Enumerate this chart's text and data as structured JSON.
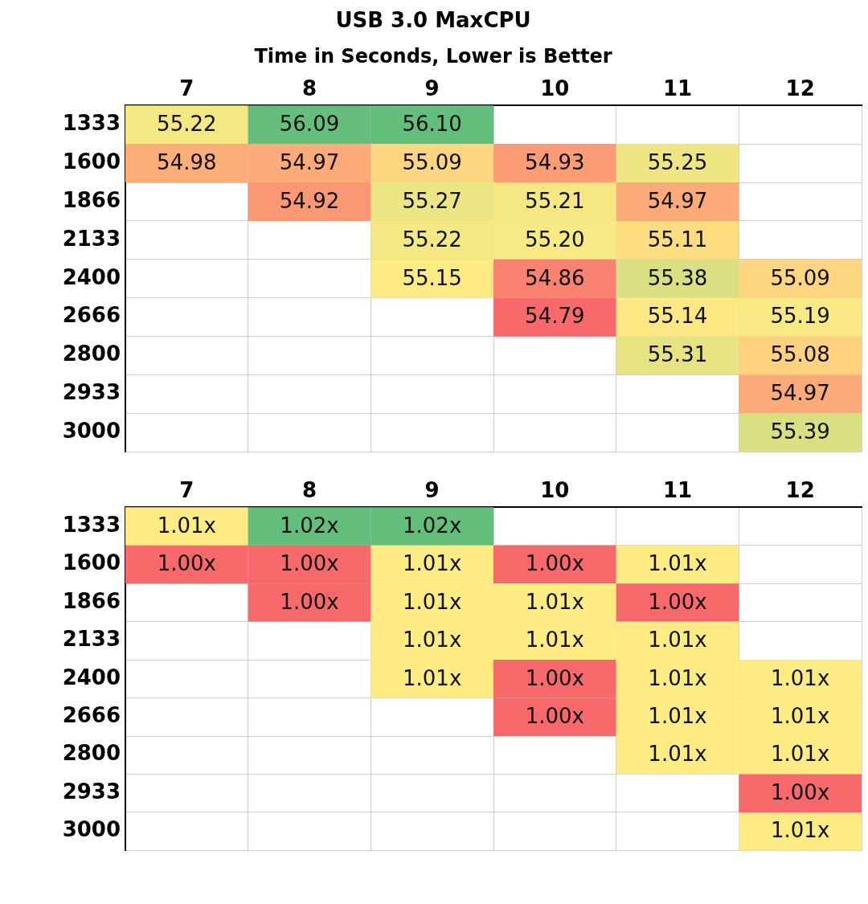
{
  "chart_data": [
    {
      "type": "heatmap",
      "title": "USB 3.0 MaxCPU",
      "subtitle": "Time in Seconds, Lower is Better",
      "categories": [
        "7",
        "8",
        "9",
        "10",
        "11",
        "12"
      ],
      "y_categories": [
        "1333",
        "1600",
        "1866",
        "2133",
        "2400",
        "2666",
        "2800",
        "2933",
        "3000"
      ],
      "cells": [
        [
          55.22,
          56.09,
          56.1,
          null,
          null,
          null
        ],
        [
          54.98,
          54.97,
          55.09,
          54.93,
          55.25,
          null
        ],
        [
          null,
          54.92,
          55.27,
          55.21,
          54.97,
          null
        ],
        [
          null,
          null,
          55.22,
          55.2,
          55.11,
          null
        ],
        [
          null,
          null,
          55.15,
          54.86,
          55.38,
          55.09
        ],
        [
          null,
          null,
          null,
          54.79,
          55.14,
          55.19
        ],
        [
          null,
          null,
          null,
          null,
          55.31,
          55.08
        ],
        [
          null,
          null,
          null,
          null,
          null,
          54.97
        ],
        [
          null,
          null,
          null,
          null,
          null,
          55.39
        ]
      ],
      "cell_labels": [
        [
          "55.22",
          "56.09",
          "56.10",
          null,
          null,
          null
        ],
        [
          "54.98",
          "54.97",
          "55.09",
          "54.93",
          "55.25",
          null
        ],
        [
          null,
          "54.92",
          "55.27",
          "55.21",
          "54.97",
          null
        ],
        [
          null,
          null,
          "55.22",
          "55.20",
          "55.11",
          null
        ],
        [
          null,
          null,
          "55.15",
          "54.86",
          "55.38",
          "55.09"
        ],
        [
          null,
          null,
          null,
          "54.79",
          "55.14",
          "55.19"
        ],
        [
          null,
          null,
          null,
          null,
          "55.31",
          "55.08"
        ],
        [
          null,
          null,
          null,
          null,
          null,
          "54.97"
        ],
        [
          null,
          null,
          null,
          null,
          null,
          "55.39"
        ]
      ]
    },
    {
      "type": "heatmap",
      "categories": [
        "7",
        "8",
        "9",
        "10",
        "11",
        "12"
      ],
      "y_categories": [
        "1333",
        "1600",
        "1866",
        "2133",
        "2400",
        "2666",
        "2800",
        "2933",
        "3000"
      ],
      "cells": [
        [
          1.01,
          1.02,
          1.02,
          null,
          null,
          null
        ],
        [
          1.0,
          1.0,
          1.01,
          1.0,
          1.01,
          null
        ],
        [
          null,
          1.0,
          1.01,
          1.01,
          1.0,
          null
        ],
        [
          null,
          null,
          1.01,
          1.01,
          1.01,
          null
        ],
        [
          null,
          null,
          1.01,
          1.0,
          1.01,
          1.01
        ],
        [
          null,
          null,
          null,
          1.0,
          1.01,
          1.01
        ],
        [
          null,
          null,
          null,
          null,
          1.01,
          1.01
        ],
        [
          null,
          null,
          null,
          null,
          null,
          1.0
        ],
        [
          null,
          null,
          null,
          null,
          null,
          1.01
        ]
      ],
      "cell_labels": [
        [
          "1.01x",
          "1.02x",
          "1.02x",
          null,
          null,
          null
        ],
        [
          "1.00x",
          "1.00x",
          "1.01x",
          "1.00x",
          "1.01x",
          null
        ],
        [
          null,
          "1.00x",
          "1.01x",
          "1.01x",
          "1.00x",
          null
        ],
        [
          null,
          null,
          "1.01x",
          "1.01x",
          "1.01x",
          null
        ],
        [
          null,
          null,
          "1.01x",
          "1.00x",
          "1.01x",
          "1.01x"
        ],
        [
          null,
          null,
          null,
          "1.00x",
          "1.01x",
          "1.01x"
        ],
        [
          null,
          null,
          null,
          null,
          "1.01x",
          "1.01x"
        ],
        [
          null,
          null,
          null,
          null,
          null,
          "1.00x"
        ],
        [
          null,
          null,
          null,
          null,
          null,
          "1.01x"
        ]
      ]
    }
  ]
}
